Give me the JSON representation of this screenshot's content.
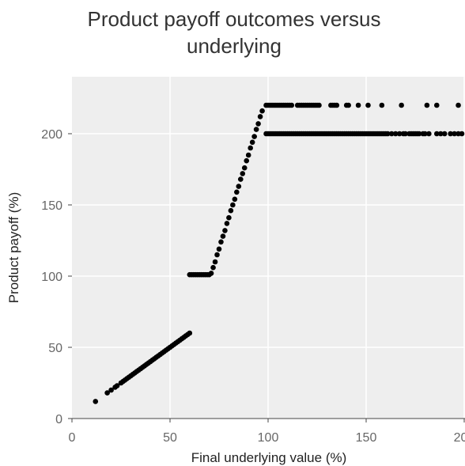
{
  "chart_data": {
    "type": "scatter",
    "title_lines": [
      "Product payoff outcomes versus",
      "underlying"
    ],
    "xlabel": "Final underlying value (%)",
    "ylabel": "Product payoff (%)",
    "xlim": [
      0,
      200
    ],
    "ylim": [
      0,
      240
    ],
    "x_ticks": [
      0,
      50,
      100,
      150,
      200
    ],
    "y_ticks": [
      0,
      50,
      100,
      150,
      200
    ],
    "x_tick_labels": [
      "0",
      "50",
      "100",
      "150",
      "200"
    ],
    "y_tick_labels": [
      "0",
      "50",
      "100",
      "150",
      "200"
    ],
    "grid": true,
    "point_color": "#000000",
    "plot_background": "#eeeeee",
    "grid_color": "#ffffff",
    "segments": [
      {
        "name_hint": "linear participation below barrier",
        "x_range": [
          12,
          60
        ],
        "rule": "y = x"
      },
      {
        "name_hint": "flat digital coupon",
        "x_range": [
          60,
          71
        ],
        "y": 101
      },
      {
        "name_hint": "leveraged participation",
        "x_range": [
          71,
          98
        ],
        "rule": "y = 101 + 4.4 * (x - 71)"
      },
      {
        "name_hint": "upper cap",
        "y": 220
      },
      {
        "name_hint": "lower cap",
        "y": 200
      }
    ],
    "points": [
      [
        12,
        12
      ],
      [
        18,
        18
      ],
      [
        20,
        20
      ],
      [
        22,
        22
      ],
      [
        23,
        23
      ],
      [
        25,
        25
      ],
      [
        26,
        26
      ],
      [
        27,
        27
      ],
      [
        28,
        28
      ],
      [
        29,
        29
      ],
      [
        30,
        30
      ],
      [
        31,
        31
      ],
      [
        32,
        32
      ],
      [
        33,
        33
      ],
      [
        34,
        34
      ],
      [
        35,
        35
      ],
      [
        36,
        36
      ],
      [
        37,
        37
      ],
      [
        38,
        38
      ],
      [
        39,
        39
      ],
      [
        40,
        40
      ],
      [
        41,
        41
      ],
      [
        42,
        42
      ],
      [
        43,
        43
      ],
      [
        44,
        44
      ],
      [
        45,
        45
      ],
      [
        46,
        46
      ],
      [
        47,
        47
      ],
      [
        48,
        48
      ],
      [
        49,
        49
      ],
      [
        50,
        50
      ],
      [
        51,
        51
      ],
      [
        52,
        52
      ],
      [
        53,
        53
      ],
      [
        54,
        54
      ],
      [
        55,
        55
      ],
      [
        56,
        56
      ],
      [
        57,
        57
      ],
      [
        58,
        58
      ],
      [
        59,
        59
      ],
      [
        60,
        60
      ],
      [
        60,
        101
      ],
      [
        61,
        101
      ],
      [
        62,
        101
      ],
      [
        63,
        101
      ],
      [
        64,
        101
      ],
      [
        65,
        101
      ],
      [
        66,
        101
      ],
      [
        67,
        101
      ],
      [
        68,
        101
      ],
      [
        69,
        101
      ],
      [
        70,
        101
      ],
      [
        71,
        102
      ],
      [
        72,
        106
      ],
      [
        73,
        110
      ],
      [
        74,
        115
      ],
      [
        75,
        119
      ],
      [
        76,
        124
      ],
      [
        77,
        128
      ],
      [
        78,
        132
      ],
      [
        79,
        137
      ],
      [
        80,
        141
      ],
      [
        81,
        146
      ],
      [
        82,
        150
      ],
      [
        83,
        154
      ],
      [
        84,
        159
      ],
      [
        85,
        163
      ],
      [
        86,
        168
      ],
      [
        87,
        172
      ],
      [
        88,
        176
      ],
      [
        89,
        181
      ],
      [
        90,
        185
      ],
      [
        91,
        190
      ],
      [
        92,
        194
      ],
      [
        93,
        198
      ],
      [
        94,
        203
      ],
      [
        95,
        207
      ],
      [
        96,
        212
      ],
      [
        97,
        216
      ],
      [
        99,
        200
      ],
      [
        100,
        200
      ],
      [
        101,
        200
      ],
      [
        102,
        200
      ],
      [
        103,
        200
      ],
      [
        104,
        200
      ],
      [
        105,
        200
      ],
      [
        106,
        200
      ],
      [
        107,
        200
      ],
      [
        108,
        200
      ],
      [
        109,
        200
      ],
      [
        110,
        200
      ],
      [
        111,
        200
      ],
      [
        112,
        200
      ],
      [
        113,
        200
      ],
      [
        114,
        200
      ],
      [
        115,
        200
      ],
      [
        116,
        200
      ],
      [
        117,
        200
      ],
      [
        118,
        200
      ],
      [
        119,
        200
      ],
      [
        120,
        200
      ],
      [
        121,
        200
      ],
      [
        122,
        200
      ],
      [
        123,
        200
      ],
      [
        124,
        200
      ],
      [
        125,
        200
      ],
      [
        126,
        200
      ],
      [
        127,
        200
      ],
      [
        128,
        200
      ],
      [
        129,
        200
      ],
      [
        130,
        200
      ],
      [
        131,
        200
      ],
      [
        132,
        200
      ],
      [
        133,
        200
      ],
      [
        134,
        200
      ],
      [
        135,
        200
      ],
      [
        136,
        200
      ],
      [
        137,
        200
      ],
      [
        138,
        200
      ],
      [
        139,
        200
      ],
      [
        140,
        200
      ],
      [
        141,
        200
      ],
      [
        142,
        200
      ],
      [
        143,
        200
      ],
      [
        144,
        200
      ],
      [
        145,
        200
      ],
      [
        146,
        200
      ],
      [
        147,
        200
      ],
      [
        148,
        200
      ],
      [
        149,
        200
      ],
      [
        150,
        200
      ],
      [
        151,
        200
      ],
      [
        152,
        200
      ],
      [
        153,
        200
      ],
      [
        154,
        200
      ],
      [
        155,
        200
      ],
      [
        156,
        200
      ],
      [
        157,
        200
      ],
      [
        158,
        200
      ],
      [
        159,
        200
      ],
      [
        160,
        200
      ],
      [
        161,
        200
      ],
      [
        163,
        200
      ],
      [
        165,
        200
      ],
      [
        167,
        200
      ],
      [
        169,
        200
      ],
      [
        170,
        200
      ],
      [
        172,
        200
      ],
      [
        173,
        200
      ],
      [
        174,
        200
      ],
      [
        175,
        200
      ],
      [
        176,
        200
      ],
      [
        177,
        200
      ],
      [
        179,
        200
      ],
      [
        180,
        200
      ],
      [
        182,
        200
      ],
      [
        186,
        200
      ],
      [
        188,
        200
      ],
      [
        190,
        200
      ],
      [
        193,
        200
      ],
      [
        195,
        200
      ],
      [
        197,
        200
      ],
      [
        200,
        200
      ],
      [
        99,
        220
      ],
      [
        100,
        220
      ],
      [
        101,
        220
      ],
      [
        102,
        220
      ],
      [
        103,
        220
      ],
      [
        104,
        220
      ],
      [
        105,
        220
      ],
      [
        106,
        220
      ],
      [
        107,
        220
      ],
      [
        108,
        220
      ],
      [
        109,
        220
      ],
      [
        110,
        220
      ],
      [
        111,
        220
      ],
      [
        112,
        220
      ],
      [
        115,
        220
      ],
      [
        116,
        220
      ],
      [
        117,
        220
      ],
      [
        118,
        220
      ],
      [
        119,
        220
      ],
      [
        120,
        220
      ],
      [
        121,
        220
      ],
      [
        122,
        220
      ],
      [
        123,
        220
      ],
      [
        124,
        220
      ],
      [
        125,
        220
      ],
      [
        126,
        220
      ],
      [
        132,
        220
      ],
      [
        133,
        220
      ],
      [
        134,
        220
      ],
      [
        135,
        220
      ],
      [
        140,
        220
      ],
      [
        141,
        220
      ],
      [
        146,
        220
      ],
      [
        151,
        220
      ],
      [
        158,
        220
      ],
      [
        168,
        220
      ],
      [
        181,
        220
      ],
      [
        186,
        220
      ],
      [
        197,
        220
      ]
    ]
  }
}
